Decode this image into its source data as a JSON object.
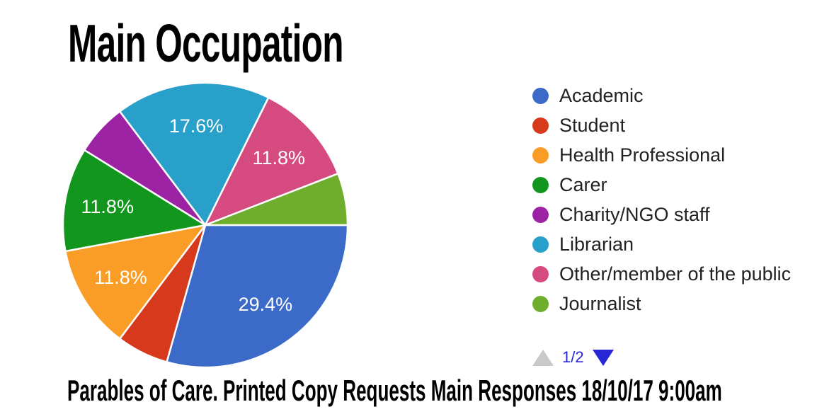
{
  "title": "Main Occupation",
  "caption": "Parables of Care. Printed Copy Requests Main Responses 18/10/17 9:00am",
  "legend": {
    "position": "right",
    "pagination": {
      "page_label": "1/2",
      "up_icon": "up-triangle",
      "down_icon": "down-triangle",
      "up_color": "#c9c9c9",
      "down_color": "#2727d6",
      "label_color": "#2727d6"
    }
  },
  "chart_data": {
    "type": "pie",
    "title": "Main Occupation",
    "start_angle": "3-o'clock",
    "direction": "clockwise",
    "legend_position": "right",
    "label_style": "percent shown inside slices, hidden for small slices",
    "label_text_color": "#ffffff",
    "slices": [
      {
        "label": "Academic",
        "percent": 29.4,
        "display_label": "29.4%",
        "color": "#3b6ac9"
      },
      {
        "label": "Student",
        "percent": 5.9,
        "display_label": "",
        "color": "#d6391c"
      },
      {
        "label": "Health Professional",
        "percent": 11.8,
        "display_label": "11.8%",
        "color": "#f99d26"
      },
      {
        "label": "Carer",
        "percent": 11.8,
        "display_label": "11.8%",
        "color": "#12961d"
      },
      {
        "label": "Charity/NGO staff",
        "percent": 5.9,
        "display_label": "",
        "color": "#9c23a4"
      },
      {
        "label": "Librarian",
        "percent": 17.6,
        "display_label": "17.6%",
        "color": "#28a0ca"
      },
      {
        "label": "Other/member of the public",
        "percent": 11.8,
        "display_label": "11.8%",
        "color": "#d54b80"
      },
      {
        "label": "Journalist",
        "percent": 5.9,
        "display_label": "",
        "color": "#6fae2c"
      }
    ]
  }
}
